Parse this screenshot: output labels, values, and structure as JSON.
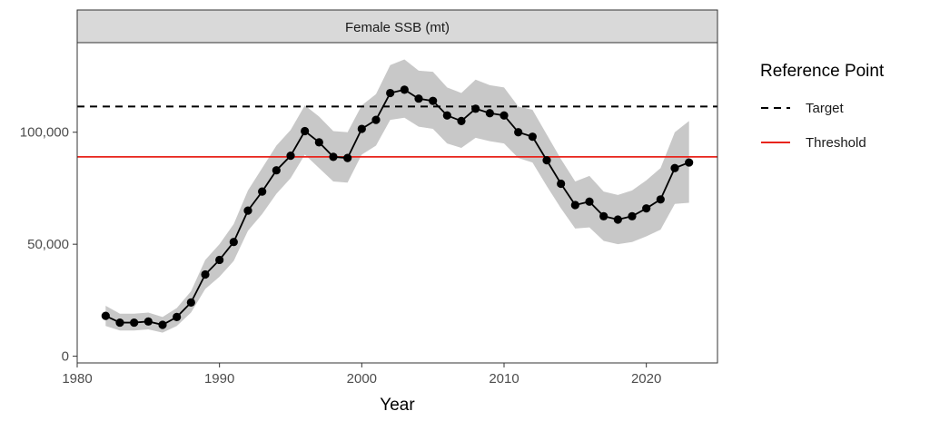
{
  "chart_data": {
    "type": "line",
    "facet_title": "Female SSB (mt)",
    "xlabel": "Year",
    "ylabel": "",
    "xlim": [
      1980,
      2025
    ],
    "ylim": [
      -3000,
      140000
    ],
    "x_ticks": [
      1980,
      1990,
      2000,
      2010,
      2020
    ],
    "x_tick_labels": [
      "1980",
      "1990",
      "2000",
      "2010",
      "2020"
    ],
    "y_ticks": [
      0,
      50000,
      100000
    ],
    "y_tick_labels": [
      "0",
      "50,000",
      "100,000"
    ],
    "grid": false,
    "legend": {
      "title": "Reference Point",
      "position": "right",
      "entries": [
        {
          "label": "Target",
          "style": "dashed",
          "color": "#000000"
        },
        {
          "label": "Threshold",
          "style": "solid",
          "color": "#e8241c"
        }
      ]
    },
    "series": [
      {
        "x": [
          1982,
          1983,
          1984,
          1985,
          1986,
          1987,
          1988,
          1989,
          1990,
          1991,
          1992,
          1993,
          1994,
          1995,
          1996,
          1997,
          1998,
          1999,
          2000,
          2001,
          2002,
          2003,
          2004,
          2005,
          2006,
          2007,
          2008,
          2009,
          2010,
          2011,
          2012,
          2013,
          2014,
          2015,
          2016,
          2017,
          2018,
          2019,
          2020,
          2021,
          2022,
          2023
        ],
        "values": [
          18000,
          15000,
          15000,
          15500,
          14000,
          17500,
          24000,
          36500,
          43000,
          51000,
          65000,
          73500,
          83000,
          89500,
          100500,
          95500,
          89000,
          88500,
          101500,
          105500,
          117500,
          119000,
          115000,
          114000,
          107500,
          105000,
          110500,
          108500,
          107500,
          100000,
          98000,
          87500,
          77000,
          67500,
          69000,
          62500,
          61000,
          62500,
          66000,
          70000,
          84000,
          86500
        ],
        "lower": [
          13500,
          11500,
          11500,
          12000,
          10500,
          13500,
          19500,
          30000,
          35500,
          42500,
          56000,
          63500,
          72500,
          79500,
          90000,
          84000,
          78000,
          77500,
          90000,
          94000,
          105500,
          106500,
          102500,
          101500,
          95000,
          93000,
          97500,
          96000,
          95000,
          88500,
          86500,
          76000,
          66000,
          57000,
          57500,
          51500,
          50000,
          51000,
          53500,
          56500,
          68000,
          68500
        ],
        "upper": [
          22500,
          19000,
          19000,
          19500,
          17500,
          21500,
          29000,
          43000,
          50000,
          59000,
          74000,
          84000,
          94000,
          101000,
          112000,
          107000,
          100500,
          100000,
          112000,
          117000,
          130000,
          132500,
          127500,
          127000,
          120000,
          117500,
          123500,
          121000,
          120000,
          111500,
          110000,
          99000,
          88000,
          78000,
          80500,
          73500,
          72000,
          74000,
          78500,
          84000,
          100000,
          105000
        ],
        "color": "#000000",
        "band_color": "#c8c8c8"
      }
    ],
    "reference_lines": [
      {
        "label": "Target",
        "value": 111500,
        "style": "dashed",
        "color": "#000000"
      },
      {
        "label": "Threshold",
        "value": 89000,
        "style": "solid",
        "color": "#e8241c"
      }
    ]
  }
}
